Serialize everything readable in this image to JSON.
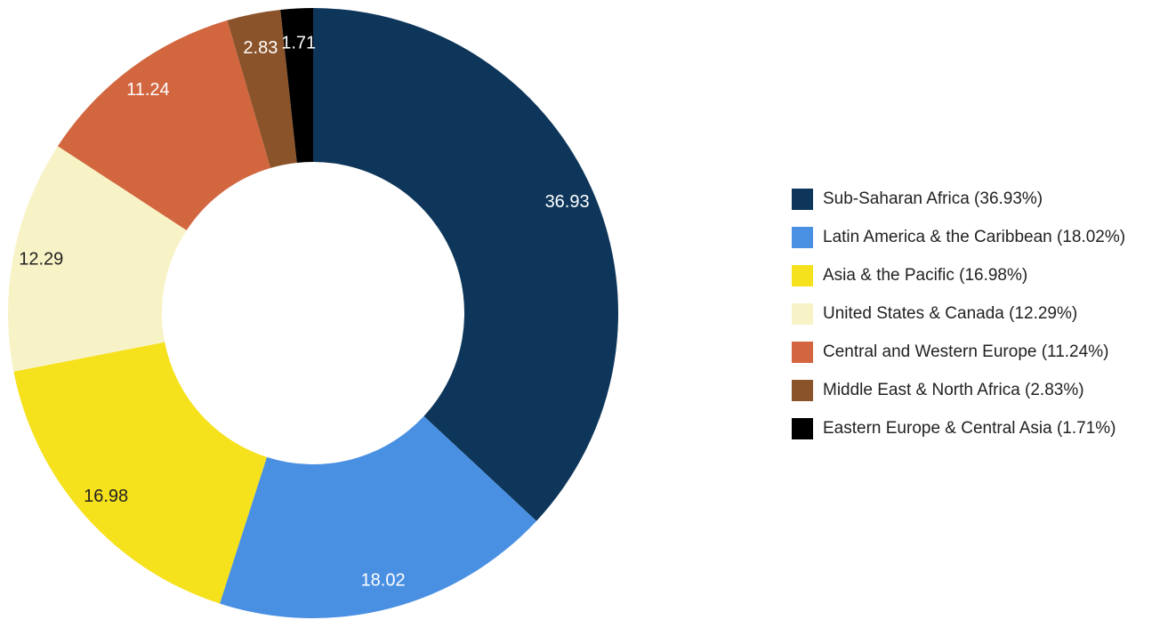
{
  "chart_data": {
    "type": "pie",
    "donut": true,
    "slices": [
      {
        "label": "Sub-Saharan Africa",
        "value": 36.93,
        "value_label": "36.93",
        "legend_label": "Sub-Saharan Africa (36.93%)",
        "color": "#0e365a",
        "label_color": "#ffffff"
      },
      {
        "label": "Latin America & the Caribbean",
        "value": 18.02,
        "value_label": "18.02",
        "legend_label": "Latin America & the Caribbean (18.02%)",
        "color": "#4a90e2",
        "label_color": "#ffffff"
      },
      {
        "label": "Asia & the Pacific",
        "value": 16.98,
        "value_label": "16.98",
        "legend_label": "Asia & the Pacific (16.98%)",
        "color": "#f5e11c",
        "label_color": "#222222"
      },
      {
        "label": "United States & Canada",
        "value": 12.29,
        "value_label": "12.29",
        "legend_label": "United States & Canada (12.29%)",
        "color": "#f8f3c6",
        "label_color": "#222222"
      },
      {
        "label": "Central and Western Europe",
        "value": 11.24,
        "value_label": "11.24",
        "legend_label": "Central and Western Europe (11.24%)",
        "color": "#d2663f",
        "label_color": "#ffffff"
      },
      {
        "label": "Middle East & North Africa",
        "value": 2.83,
        "value_label": "2.83",
        "legend_label": "Middle East & North Africa (2.83%)",
        "color": "#8a532a",
        "label_color": "#ffffff"
      },
      {
        "label": "Eastern Europe & Central Asia",
        "value": 1.71,
        "value_label": "1.71",
        "legend_label": "Eastern Europe & Central Asia (1.71%)",
        "color": "#000000",
        "label_color": "#ffffff"
      }
    ],
    "legend_position": "right",
    "start_angle": "top",
    "direction": "clockwise"
  }
}
